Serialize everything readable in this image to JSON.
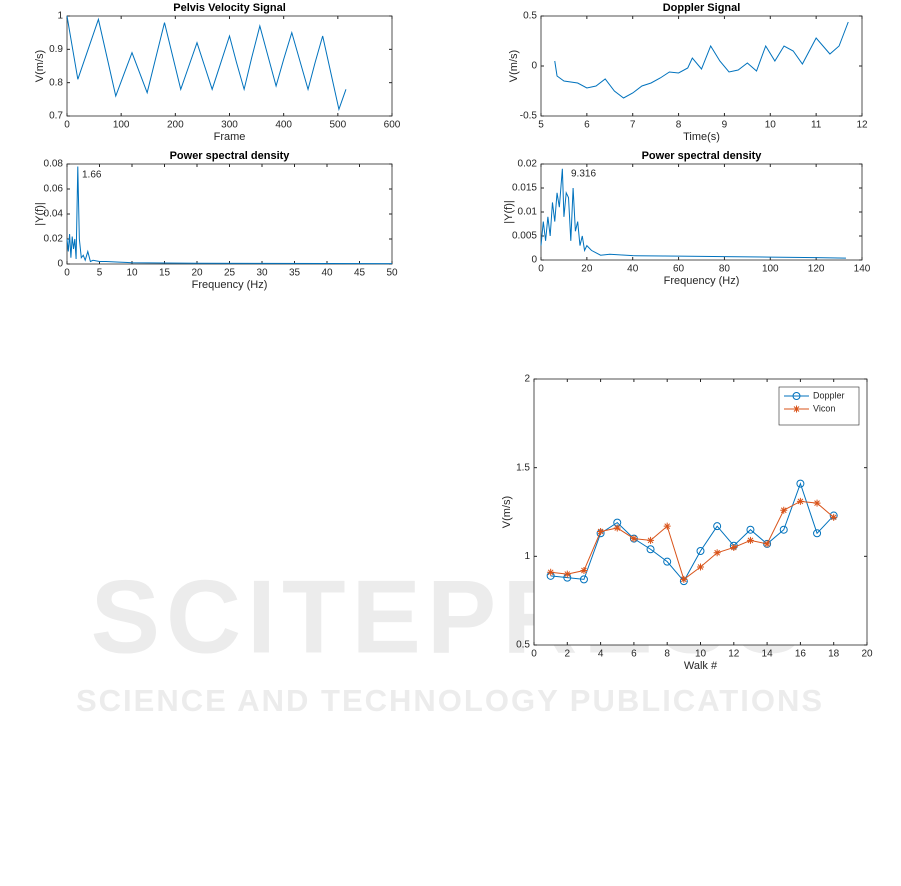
{
  "watermark": {
    "title": "SCITEPRESS",
    "subtitle": "SCIENCE AND TECHNOLOGY PUBLICATIONS"
  },
  "chart_data": [
    {
      "type": "line",
      "title": "Pelvis Velocity Signal",
      "xlabel": "Frame",
      "ylabel": "V(m/s)",
      "color": "#0072bd",
      "x": [
        0,
        10,
        20,
        39,
        58,
        74,
        90,
        105,
        120,
        134,
        148,
        164,
        180,
        195,
        210,
        225,
        240,
        254,
        268,
        284,
        300,
        313,
        327,
        341,
        356,
        371,
        386,
        400,
        415,
        430,
        445,
        458,
        472,
        487,
        502,
        515
      ],
      "values": [
        1.0,
        0.905,
        0.81,
        0.9,
        0.99,
        0.875,
        0.76,
        0.825,
        0.89,
        0.83,
        0.77,
        0.875,
        0.98,
        0.88,
        0.78,
        0.85,
        0.92,
        0.85,
        0.78,
        0.86,
        0.94,
        0.86,
        0.78,
        0.875,
        0.97,
        0.88,
        0.79,
        0.87,
        0.95,
        0.865,
        0.78,
        0.86,
        0.94,
        0.83,
        0.72,
        0.78
      ],
      "xlim": [
        0,
        600
      ],
      "xticks": [
        0,
        100,
        200,
        300,
        400,
        500,
        600
      ],
      "ylim": [
        0.7,
        1
      ],
      "yticks": [
        0.7,
        0.8,
        0.9,
        1
      ]
    },
    {
      "type": "line",
      "title": "Power spectral density",
      "xlabel": "Frequency (Hz)",
      "ylabel": "|Y(f)|",
      "annotation": "1.66",
      "color": "#0072bd",
      "x": [
        0,
        0.2,
        0.4,
        0.6,
        0.8,
        1.0,
        1.2,
        1.4,
        1.66,
        1.9,
        2.2,
        2.5,
        2.8,
        3.2,
        3.6,
        4,
        5,
        6,
        8,
        10,
        15,
        20,
        30,
        40,
        50
      ],
      "values": [
        0.02,
        0.01,
        0.024,
        0.005,
        0.022,
        0.012,
        0.02,
        0.004,
        0.078,
        0.02,
        0.005,
        0.007,
        0.003,
        0.01,
        0.002,
        0.003,
        0.002,
        0.002,
        0.0015,
        0.001,
        0.0008,
        0.0006,
        0.0005,
        0.0004,
        0.0003
      ],
      "xlim": [
        0,
        50
      ],
      "xticks": [
        0,
        5,
        10,
        15,
        20,
        25,
        30,
        35,
        40,
        45,
        50
      ],
      "ylim": [
        0,
        0.08
      ],
      "yticks": [
        0,
        0.02,
        0.04,
        0.06,
        0.08
      ]
    },
    {
      "type": "line",
      "title": "Doppler Signal",
      "xlabel": "Time(s)",
      "ylabel": "V(m/s)",
      "color": "#0072bd",
      "x": [
        5.3,
        5.35,
        5.5,
        5.8,
        6.0,
        6.2,
        6.4,
        6.6,
        6.8,
        7.0,
        7.2,
        7.4,
        7.6,
        7.8,
        8.0,
        8.2,
        8.3,
        8.5,
        8.7,
        8.9,
        9.1,
        9.3,
        9.5,
        9.7,
        9.9,
        10.1,
        10.3,
        10.5,
        10.7,
        11.0,
        11.3,
        11.5,
        11.7
      ],
      "values": [
        0.05,
        -0.1,
        -0.15,
        -0.17,
        -0.22,
        -0.2,
        -0.13,
        -0.25,
        -0.32,
        -0.27,
        -0.2,
        -0.17,
        -0.12,
        -0.06,
        -0.07,
        -0.02,
        0.08,
        -0.03,
        0.2,
        0.05,
        -0.06,
        -0.04,
        0.03,
        -0.05,
        0.2,
        0.05,
        0.2,
        0.15,
        0.02,
        0.28,
        0.12,
        0.2,
        0.44
      ],
      "xlim": [
        5,
        12
      ],
      "xticks": [
        5,
        6,
        7,
        8,
        9,
        10,
        11,
        12
      ],
      "ylim": [
        -0.5,
        0.5
      ],
      "yticks": [
        -0.5,
        0,
        0.5
      ]
    },
    {
      "type": "line",
      "title": "Power spectral density",
      "xlabel": "Frequency (Hz)",
      "ylabel": "|Y(f)|",
      "annotation": "9.316",
      "color": "#0072bd",
      "x": [
        0,
        1,
        2,
        3,
        4,
        5,
        6,
        7,
        8,
        9.316,
        10,
        11,
        12,
        13,
        14,
        15,
        16,
        17,
        18,
        19,
        20,
        22,
        24,
        26,
        30,
        40,
        60,
        80,
        100,
        120,
        133
      ],
      "values": [
        0.003,
        0.008,
        0.004,
        0.009,
        0.005,
        0.012,
        0.008,
        0.014,
        0.011,
        0.019,
        0.009,
        0.014,
        0.013,
        0.004,
        0.015,
        0.006,
        0.008,
        0.003,
        0.005,
        0.002,
        0.003,
        0.002,
        0.0015,
        0.001,
        0.0012,
        0.0009,
        0.0008,
        0.0007,
        0.0006,
        0.0005,
        0.0004
      ],
      "xlim": [
        0,
        140
      ],
      "xticks": [
        0,
        20,
        40,
        60,
        80,
        100,
        120,
        140
      ],
      "ylim": [
        0,
        0.02
      ],
      "yticks": [
        0,
        0.005,
        0.01,
        0.015,
        0.02
      ]
    },
    {
      "type": "line",
      "xlabel": "Walk #",
      "ylabel": "V(m/s)",
      "legend": "northeast",
      "x": [
        1,
        2,
        3,
        4,
        5,
        6,
        7,
        8,
        9,
        10,
        11,
        12,
        13,
        14,
        15,
        16,
        17,
        18
      ],
      "series": [
        {
          "name": "Doppler",
          "color": "#0072bd",
          "marker": "circle",
          "values": [
            0.89,
            0.88,
            0.87,
            1.13,
            1.19,
            1.1,
            1.04,
            0.97,
            0.86,
            1.03,
            1.17,
            1.06,
            1.15,
            1.07,
            1.15,
            1.41,
            1.13,
            1.23
          ]
        },
        {
          "name": "Vicon",
          "color": "#d95319",
          "marker": "asterisk",
          "values": [
            0.91,
            0.9,
            0.92,
            1.14,
            1.16,
            1.1,
            1.09,
            1.17,
            0.87,
            0.94,
            1.02,
            1.05,
            1.09,
            1.07,
            1.26,
            1.31,
            1.3,
            1.22
          ]
        }
      ],
      "xlim": [
        0,
        20
      ],
      "xticks": [
        0,
        2,
        4,
        6,
        8,
        10,
        12,
        14,
        16,
        18,
        20
      ],
      "ylim": [
        0.5,
        2
      ],
      "yticks": [
        0.5,
        1,
        1.5,
        2
      ]
    }
  ]
}
